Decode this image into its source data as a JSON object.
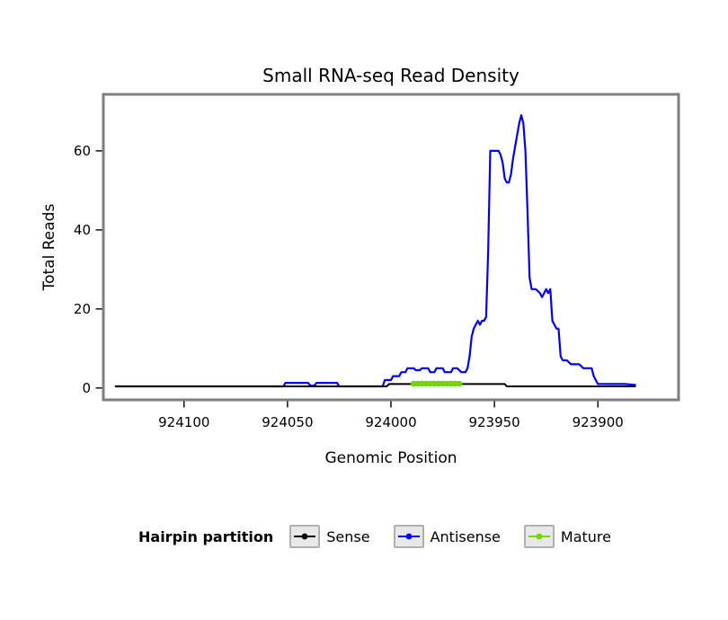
{
  "chart_data": {
    "type": "line",
    "title": "Small RNA-seq Read Density",
    "xlabel": "Genomic Position",
    "ylabel": "Total Reads",
    "legend_title": "Hairpin partition",
    "legend_position": "bottom",
    "grid": false,
    "x_reversed": true,
    "xlim": [
      924139,
      923861
    ],
    "ylim": [
      -3,
      74.3
    ],
    "x_ticks": [
      924100,
      924050,
      924000,
      923950,
      923900
    ],
    "y_ticks": [
      0,
      20,
      40,
      60
    ],
    "panel_border_color": "#7f7f7f",
    "series": [
      {
        "name": "Sense",
        "color": "#000000",
        "width": 2,
        "marker": false,
        "points": [
          [
            924133,
            0.4
          ],
          [
            924002,
            0.4
          ],
          [
            924001,
            1
          ],
          [
            923945,
            1
          ],
          [
            923944,
            0.4
          ],
          [
            923882,
            0.4
          ]
        ]
      },
      {
        "name": "Antisense",
        "color": "#0000EE",
        "width": 2.2,
        "marker": false,
        "points": [
          [
            924133,
            0.4
          ],
          [
            924052,
            0.4
          ],
          [
            924051,
            1.3
          ],
          [
            924040,
            1.3
          ],
          [
            924039,
            0.6
          ],
          [
            924037,
            0.6
          ],
          [
            924036,
            1.3
          ],
          [
            924026,
            1.3
          ],
          [
            924025,
            0.4
          ],
          [
            924004,
            0.4
          ],
          [
            924003,
            2
          ],
          [
            924000,
            2
          ],
          [
            923999,
            3
          ],
          [
            923996,
            3
          ],
          [
            923995,
            4
          ],
          [
            923993,
            4
          ],
          [
            923992,
            5
          ],
          [
            923989,
            5
          ],
          [
            923988,
            4.5
          ],
          [
            923986,
            4.5
          ],
          [
            923985,
            5
          ],
          [
            923982,
            5
          ],
          [
            923981,
            4
          ],
          [
            923979,
            4
          ],
          [
            923978,
            5
          ],
          [
            923975,
            5
          ],
          [
            923974,
            4
          ],
          [
            923971,
            4
          ],
          [
            923970,
            5
          ],
          [
            923968,
            5
          ],
          [
            923966,
            4
          ],
          [
            923964,
            4
          ],
          [
            923963,
            5
          ],
          [
            923962,
            8
          ],
          [
            923961,
            13
          ],
          [
            923960,
            15
          ],
          [
            923959,
            16
          ],
          [
            923958,
            17
          ],
          [
            923957,
            16
          ],
          [
            923956,
            17
          ],
          [
            923955,
            17
          ],
          [
            923954,
            18
          ],
          [
            923953,
            35
          ],
          [
            923952,
            60
          ],
          [
            923948,
            60
          ],
          [
            923947,
            59
          ],
          [
            923946,
            57
          ],
          [
            923945,
            53
          ],
          [
            923944,
            52
          ],
          [
            923943,
            52
          ],
          [
            923942,
            54
          ],
          [
            923941,
            58
          ],
          [
            923940,
            61
          ],
          [
            923939,
            64
          ],
          [
            923938,
            67
          ],
          [
            923937,
            69
          ],
          [
            923936,
            67
          ],
          [
            923935,
            60
          ],
          [
            923934,
            45
          ],
          [
            923933,
            28
          ],
          [
            923932,
            25
          ],
          [
            923930,
            25
          ],
          [
            923928,
            24
          ],
          [
            923927,
            23
          ],
          [
            923926,
            24
          ],
          [
            923925,
            25
          ],
          [
            923924,
            24
          ],
          [
            923923,
            25
          ],
          [
            923922,
            17
          ],
          [
            923921,
            16
          ],
          [
            923920,
            15
          ],
          [
            923919,
            15
          ],
          [
            923918,
            8
          ],
          [
            923917,
            7
          ],
          [
            923915,
            7
          ],
          [
            923913,
            6
          ],
          [
            923909,
            6
          ],
          [
            923907,
            5
          ],
          [
            923903,
            5
          ],
          [
            923902,
            3
          ],
          [
            923901,
            2
          ],
          [
            923900,
            1
          ],
          [
            923887,
            1
          ],
          [
            923882,
            0.8
          ]
        ]
      },
      {
        "name": "Mature",
        "color": "#74D600",
        "width": 5.5,
        "marker": true,
        "points": [
          [
            923989,
            1.1
          ],
          [
            923987,
            1.1
          ],
          [
            923985,
            1.1
          ],
          [
            923983,
            1.1
          ],
          [
            923981,
            1.1
          ],
          [
            923979,
            1.1
          ],
          [
            923977,
            1.1
          ],
          [
            923975,
            1.1
          ],
          [
            923973,
            1.1
          ],
          [
            923971,
            1.1
          ],
          [
            923969,
            1.1
          ],
          [
            923967,
            1.1
          ]
        ]
      }
    ]
  }
}
